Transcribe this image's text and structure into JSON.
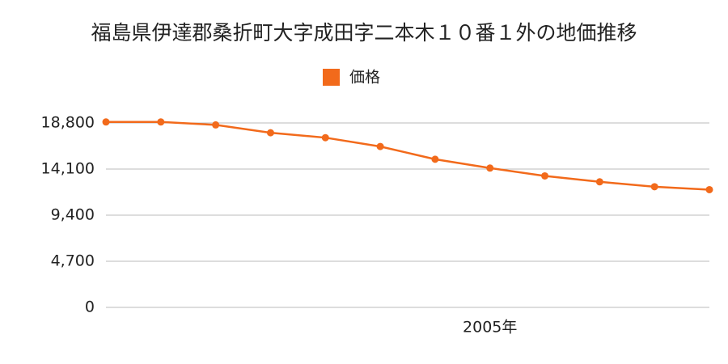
{
  "chart_data": {
    "type": "line",
    "title": "福島県伊達郡桑折町大字成田字二本木１０番１外の地価推移",
    "categories": [
      null,
      null,
      null,
      null,
      null,
      null,
      null,
      "2005年",
      null,
      null,
      null,
      null
    ],
    "series": [
      {
        "name": "価格",
        "color": "#f26a1b",
        "values": [
          18900,
          18900,
          18600,
          17800,
          17300,
          16400,
          15100,
          14200,
          13400,
          12800,
          12300,
          12000
        ]
      }
    ],
    "ylim": [
      0,
      18800
    ],
    "yticks": [
      0,
      {
        "value": 4700,
        "label": "4,700"
      },
      {
        "value": 9400,
        "label": "9,400"
      },
      {
        "value": 14100,
        "label": "14,100"
      },
      {
        "value": 18800,
        "label": "18,800"
      }
    ],
    "grid": true,
    "legend": "top"
  }
}
